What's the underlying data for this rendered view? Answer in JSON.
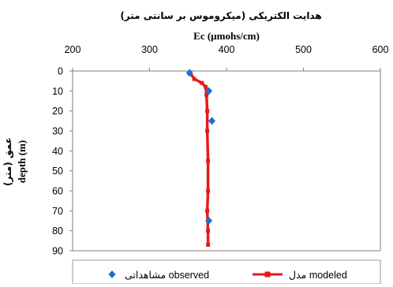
{
  "chart_data": {
    "type": "line",
    "title": "هدایت الکتریکی (میکروموس بر سانتی متر)",
    "subtitle": "Ec (µmohs/cm)",
    "ylabel_fa": "عمق (متر)",
    "ylabel": "depth (m)",
    "xlim": [
      200,
      600
    ],
    "ylim": [
      0,
      90
    ],
    "x_axis_position": "top",
    "y_axis_inverted": true,
    "x_ticks": [
      "200",
      "300",
      "400",
      "500",
      "600"
    ],
    "y_ticks": [
      "0",
      "10",
      "20",
      "30",
      "40",
      "50",
      "60",
      "70",
      "80",
      "90"
    ],
    "grid": false,
    "legend_position": "bottom",
    "series": [
      {
        "name": "مشاهداتی observed",
        "type": "scatter",
        "color": "#1f6fd0",
        "marker": "diamond",
        "x": [
          352,
          377,
          381,
          377
        ],
        "y": [
          1,
          10,
          25,
          75
        ]
      },
      {
        "name": "مدل modeled",
        "type": "line",
        "color": "#e8191b",
        "marker": "square",
        "x": [
          353,
          358,
          368,
          373,
          374,
          375,
          375,
          376,
          376,
          375,
          376,
          376
        ],
        "y": [
          1,
          4,
          6,
          8,
          12,
          20,
          30,
          45,
          60,
          70,
          80,
          87
        ]
      }
    ]
  }
}
